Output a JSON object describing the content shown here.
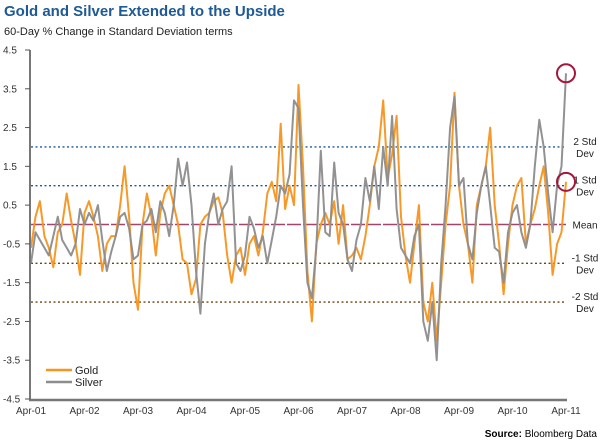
{
  "chart_data": {
    "type": "line",
    "title": "Gold and Silver Extended to the Upside",
    "subtitle": "60-Day % Change in Standard Deviation terms",
    "xlabel": "",
    "ylabel": "",
    "ylim": [
      -4.5,
      4.5
    ],
    "yticks": [
      "4.5",
      "3.5",
      "2.5",
      "1.5",
      "0.5",
      "-0.5",
      "-1.5",
      "-2.5",
      "-3.5",
      "-4.5"
    ],
    "ytick_values": [
      4.5,
      3.5,
      2.5,
      1.5,
      0.5,
      -0.5,
      -1.5,
      -2.5,
      -3.5,
      -4.5
    ],
    "xticks": [
      "Apr-01",
      "Apr-02",
      "Apr-03",
      "Apr-04",
      "Apr-05",
      "Apr-06",
      "Apr-07",
      "Apr-08",
      "Apr-09",
      "Apr-10",
      "Apr-11"
    ],
    "x_unit": "months since Apr-01",
    "x_range": [
      0,
      120
    ],
    "grid": false,
    "legend_position": "bottom-left",
    "reference_lines": [
      {
        "value": 2,
        "label": [
          "2 Std",
          "Dev"
        ],
        "color": "#1d5a96"
      },
      {
        "value": 1,
        "label": [
          "1 Std",
          "Dev"
        ],
        "color": "#1d5a96"
      },
      {
        "value": 0,
        "label": [
          "Mean"
        ],
        "color": "#a3456a"
      },
      {
        "value": -1,
        "label": [
          "-1 Std",
          "Dev"
        ],
        "color": "#6b4412"
      },
      {
        "value": -2,
        "label": [
          "-2 Std",
          "Dev"
        ],
        "color": "#6b4412"
      }
    ],
    "highlights": [
      {
        "series": "Silver",
        "month": 120,
        "value": 3.9
      },
      {
        "series": "Gold",
        "month": 120,
        "value": 1.1
      }
    ],
    "highlight_color": "#a3173c",
    "series": [
      {
        "name": "Gold",
        "color": "#f7941d",
        "values": [
          -0.6,
          0.2,
          0.6,
          -0.3,
          -0.6,
          -1.1,
          -0.2,
          0.0,
          0.8,
          0.1,
          -0.5,
          -1.3,
          0.3,
          0.6,
          0.2,
          -0.3,
          -1.2,
          -0.5,
          -0.3,
          -0.3,
          0.5,
          1.5,
          0.2,
          -1.5,
          -2.2,
          0.0,
          0.8,
          0.2,
          -0.8,
          0.3,
          0.8,
          1.0,
          0.5,
          0.0,
          -0.9,
          -1.0,
          -1.8,
          -1.4,
          0.0,
          0.2,
          0.3,
          0.6,
          0.7,
          0.3,
          -0.8,
          -1.5,
          -0.8,
          -0.6,
          -1.3,
          -0.5,
          -0.3,
          -0.8,
          -0.2,
          0.8,
          1.1,
          0.6,
          2.6,
          0.4,
          1.0,
          0.5,
          3.6,
          1.5,
          -1.2,
          -2.5,
          -0.5,
          0.0,
          0.3,
          0.0,
          0.6,
          -0.5,
          0.5,
          -0.9,
          -0.8,
          -0.6,
          -0.9,
          -0.3,
          0.5,
          1.5,
          2.0,
          3.2,
          1.2,
          1.8,
          2.8,
          0.2,
          -0.8,
          -1.5,
          -0.5,
          0.5,
          -2.0,
          -2.5,
          -1.5,
          -3.0,
          -1.5,
          0.0,
          1.0,
          3.4,
          1.0,
          0.0,
          -0.5,
          -1.5,
          0.5,
          1.0,
          1.5,
          2.5,
          0.5,
          -0.5,
          -1.8,
          -0.5,
          0.5,
          1.0,
          1.2,
          -0.5,
          0.0,
          0.4,
          1.0,
          1.5,
          0.3,
          -1.3,
          -0.5,
          -0.2,
          1.1
        ]
      },
      {
        "name": "Silver",
        "color": "#8c8c8c",
        "values": [
          -1.0,
          -0.2,
          -0.4,
          -0.6,
          -0.8,
          -0.3,
          0.2,
          -0.4,
          -0.6,
          -0.8,
          -0.5,
          0.4,
          0.0,
          0.3,
          0.1,
          0.5,
          -0.4,
          -1.2,
          -0.7,
          -0.3,
          0.2,
          0.3,
          -0.1,
          -0.9,
          -0.8,
          0.0,
          0.1,
          0.4,
          -0.2,
          0.6,
          0.3,
          -0.3,
          0.5,
          1.7,
          1.0,
          1.6,
          0.5,
          -1.2,
          -2.3,
          -0.5,
          0.3,
          0.8,
          0.0,
          0.4,
          0.6,
          1.5,
          -1.0,
          -1.2,
          -0.8,
          0.2,
          -0.1,
          -0.6,
          -0.3,
          -1.0,
          -0.4,
          0.2,
          1.0,
          0.8,
          1.3,
          3.2,
          3.0,
          0.5,
          -1.5,
          -1.9,
          -0.6,
          1.9,
          -0.2,
          -0.3,
          1.6,
          0.3,
          0.0,
          -0.9,
          -1.2,
          -0.4,
          0.0,
          1.2,
          0.6,
          1.5,
          0.4,
          2.0,
          1.0,
          2.8,
          0.4,
          -0.6,
          -0.8,
          -1.0,
          -0.3,
          0.0,
          -2.5,
          -3.0,
          -2.0,
          -3.5,
          -1.0,
          0.5,
          2.5,
          3.3,
          1.0,
          1.2,
          -0.5,
          -0.9,
          0.3,
          1.0,
          1.5,
          0.5,
          -0.6,
          -0.7,
          -1.5,
          -0.2,
          0.3,
          0.5,
          -0.2,
          -0.6,
          0.0,
          1.5,
          2.7,
          2.0,
          0.8,
          -0.2,
          1.0,
          1.5,
          3.9
        ]
      }
    ],
    "source_label": "Source:",
    "source_text": "Bloomberg Data"
  }
}
